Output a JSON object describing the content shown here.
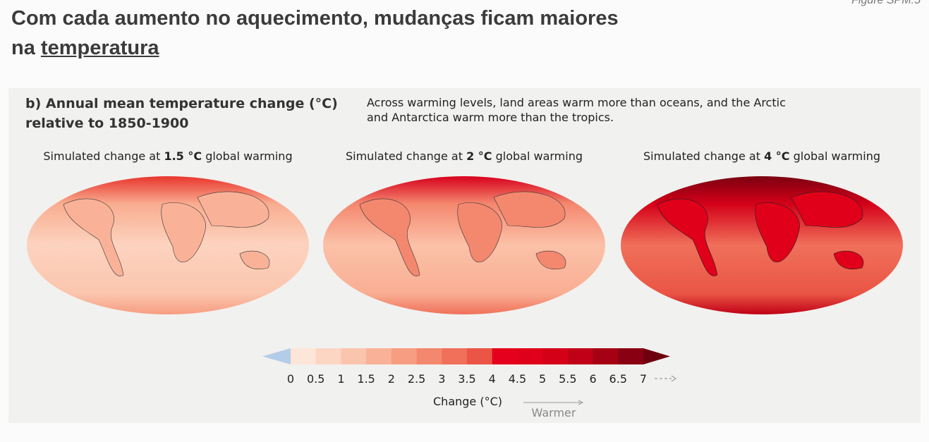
{
  "header": {
    "title_line1": "Com cada aumento no aquecimento, mudanças ficam maiores",
    "title_line2_prefix": "na",
    "title_line2_link": "temperatura",
    "corner": "Figure SPM.5"
  },
  "panel": {
    "title_line1": "b) Annual mean temperature change (°C)",
    "title_line2": "relative to 1850-1900",
    "description_line1": "Across warming levels, land areas warm more than oceans, and the Arctic",
    "description_line2": "and Antarctica warm more than the tropics.",
    "maps": [
      {
        "prefix": "Simulated change at",
        "level": "1.5 °C",
        "suffix": "global warming"
      },
      {
        "prefix": "Simulated change at",
        "level": "2 °C",
        "suffix": "global warming"
      },
      {
        "prefix": "Simulated change at",
        "level": "4 °C",
        "suffix": "global warming"
      }
    ],
    "colorbar": {
      "ticks": [
        0,
        0.5,
        1,
        1.5,
        2,
        2.5,
        3,
        3.5,
        4,
        4.5,
        5,
        5.5,
        6,
        6.5,
        7
      ],
      "colors": [
        "#fde6d8",
        "#fcd6c3",
        "#fbc5ad",
        "#f9b298",
        "#f79d82",
        "#f4886f",
        "#f0705a",
        "#ea5545",
        "#e5001d",
        "#e0001a",
        "#d40018",
        "#c00016",
        "#a60014",
        "#880012"
      ],
      "under_color": "#b3cde8",
      "over_color": "#6e000e",
      "label": "Change (°C)",
      "direction": "Warmer"
    }
  }
}
